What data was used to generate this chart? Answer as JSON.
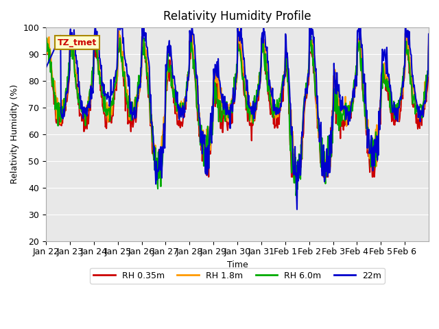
{
  "title": "Relativity Humidity Profile",
  "ylabel": "Relativity Humidity (%)",
  "xlabel": "Time",
  "ylim": [
    20,
    100
  ],
  "bg_color": "#e8e8e8",
  "fig_color": "#ffffff",
  "annotation_label": "TZ_tmet",
  "xtick_labels": [
    "Jan 22",
    "Jan 23",
    "Jan 24",
    "Jan 25",
    "Jan 26",
    "Jan 27",
    "Jan 28",
    "Jan 29",
    "Jan 30",
    "Jan 31",
    "Feb 1",
    "Feb 2",
    "Feb 3",
    "Feb 4",
    "Feb 5",
    "Feb 6"
  ],
  "legend_entries": [
    "RH 0.35m",
    "RH 1.8m",
    "RH 6.0m",
    "22m"
  ],
  "line_colors": [
    "#cc0000",
    "#ff9900",
    "#00aa00",
    "#0000cc"
  ],
  "line_width": 1.5,
  "yticks": [
    20,
    30,
    40,
    50,
    60,
    70,
    80,
    90,
    100
  ]
}
